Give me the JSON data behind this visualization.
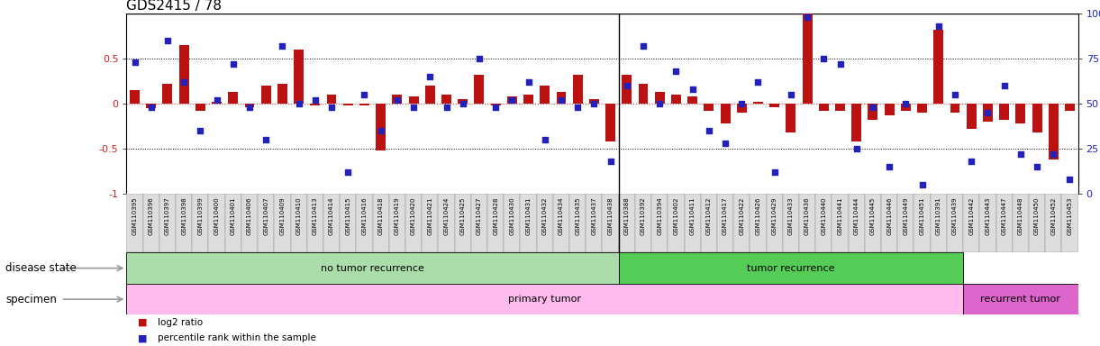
{
  "title": "GDS2415 / 78",
  "samples": [
    "GSM110395",
    "GSM110396",
    "GSM110397",
    "GSM110398",
    "GSM110399",
    "GSM110400",
    "GSM110401",
    "GSM110406",
    "GSM110407",
    "GSM110409",
    "GSM110410",
    "GSM110413",
    "GSM110414",
    "GSM110415",
    "GSM110416",
    "GSM110418",
    "GSM110419",
    "GSM110420",
    "GSM110421",
    "GSM110424",
    "GSM110425",
    "GSM110427",
    "GSM110428",
    "GSM110430",
    "GSM110431",
    "GSM110432",
    "GSM110434",
    "GSM110435",
    "GSM110437",
    "GSM110438",
    "GSM110388",
    "GSM110392",
    "GSM110394",
    "GSM110402",
    "GSM110411",
    "GSM110412",
    "GSM110417",
    "GSM110422",
    "GSM110426",
    "GSM110429",
    "GSM110433",
    "GSM110436",
    "GSM110440",
    "GSM110441",
    "GSM110444",
    "GSM110445",
    "GSM110446",
    "GSM110449",
    "GSM110451",
    "GSM110391",
    "GSM110439",
    "GSM110442",
    "GSM110443",
    "GSM110447",
    "GSM110448",
    "GSM110450",
    "GSM110452",
    "GSM110453"
  ],
  "log2_ratio": [
    0.15,
    -0.05,
    0.22,
    0.65,
    -0.08,
    0.02,
    0.13,
    -0.04,
    0.2,
    0.22,
    0.6,
    -0.02,
    0.1,
    -0.02,
    -0.02,
    -0.52,
    0.1,
    0.08,
    0.2,
    0.1,
    0.05,
    0.32,
    -0.02,
    0.08,
    0.1,
    0.2,
    0.13,
    0.32,
    0.05,
    -0.42,
    0.32,
    0.22,
    0.13,
    0.1,
    0.08,
    -0.08,
    -0.22,
    -0.1,
    0.02,
    -0.04,
    -0.32,
    1.02,
    -0.08,
    -0.08,
    -0.42,
    -0.18,
    -0.13,
    -0.08,
    -0.1,
    0.82,
    -0.1,
    -0.28,
    -0.2,
    -0.18,
    -0.22,
    -0.32,
    -0.62,
    -0.08
  ],
  "percentile": [
    0.73,
    0.48,
    0.85,
    0.62,
    0.35,
    0.52,
    0.72,
    0.48,
    0.3,
    0.82,
    0.5,
    0.52,
    0.48,
    0.12,
    0.55,
    0.35,
    0.52,
    0.48,
    0.65,
    0.48,
    0.5,
    0.75,
    0.48,
    0.52,
    0.62,
    0.3,
    0.52,
    0.48,
    0.5,
    0.18,
    0.6,
    0.82,
    0.5,
    0.68,
    0.58,
    0.35,
    0.28,
    0.5,
    0.62,
    0.12,
    0.55,
    0.98,
    0.75,
    0.72,
    0.25,
    0.48,
    0.15,
    0.5,
    0.05,
    0.93,
    0.55,
    0.18,
    0.45,
    0.6,
    0.22,
    0.15,
    0.22,
    0.08
  ],
  "no_recurrence_count": 30,
  "recurrence_count": 21,
  "recurrent_tumor_count": 7,
  "disease_state_label1": "no tumor recurrence",
  "disease_state_label2": "tumor recurrence",
  "specimen_label1": "primary tumor",
  "specimen_label2": "recurrent tumor",
  "bar_color": "#bb1111",
  "dot_color": "#2222bb",
  "light_green": "#aaddaa",
  "bright_green": "#55cc55",
  "light_pink": "#ffbbee",
  "bright_pink": "#dd66cc",
  "label_color_left": "#cc2222",
  "label_color_right": "#2222cc",
  "arrow_color": "#999999"
}
